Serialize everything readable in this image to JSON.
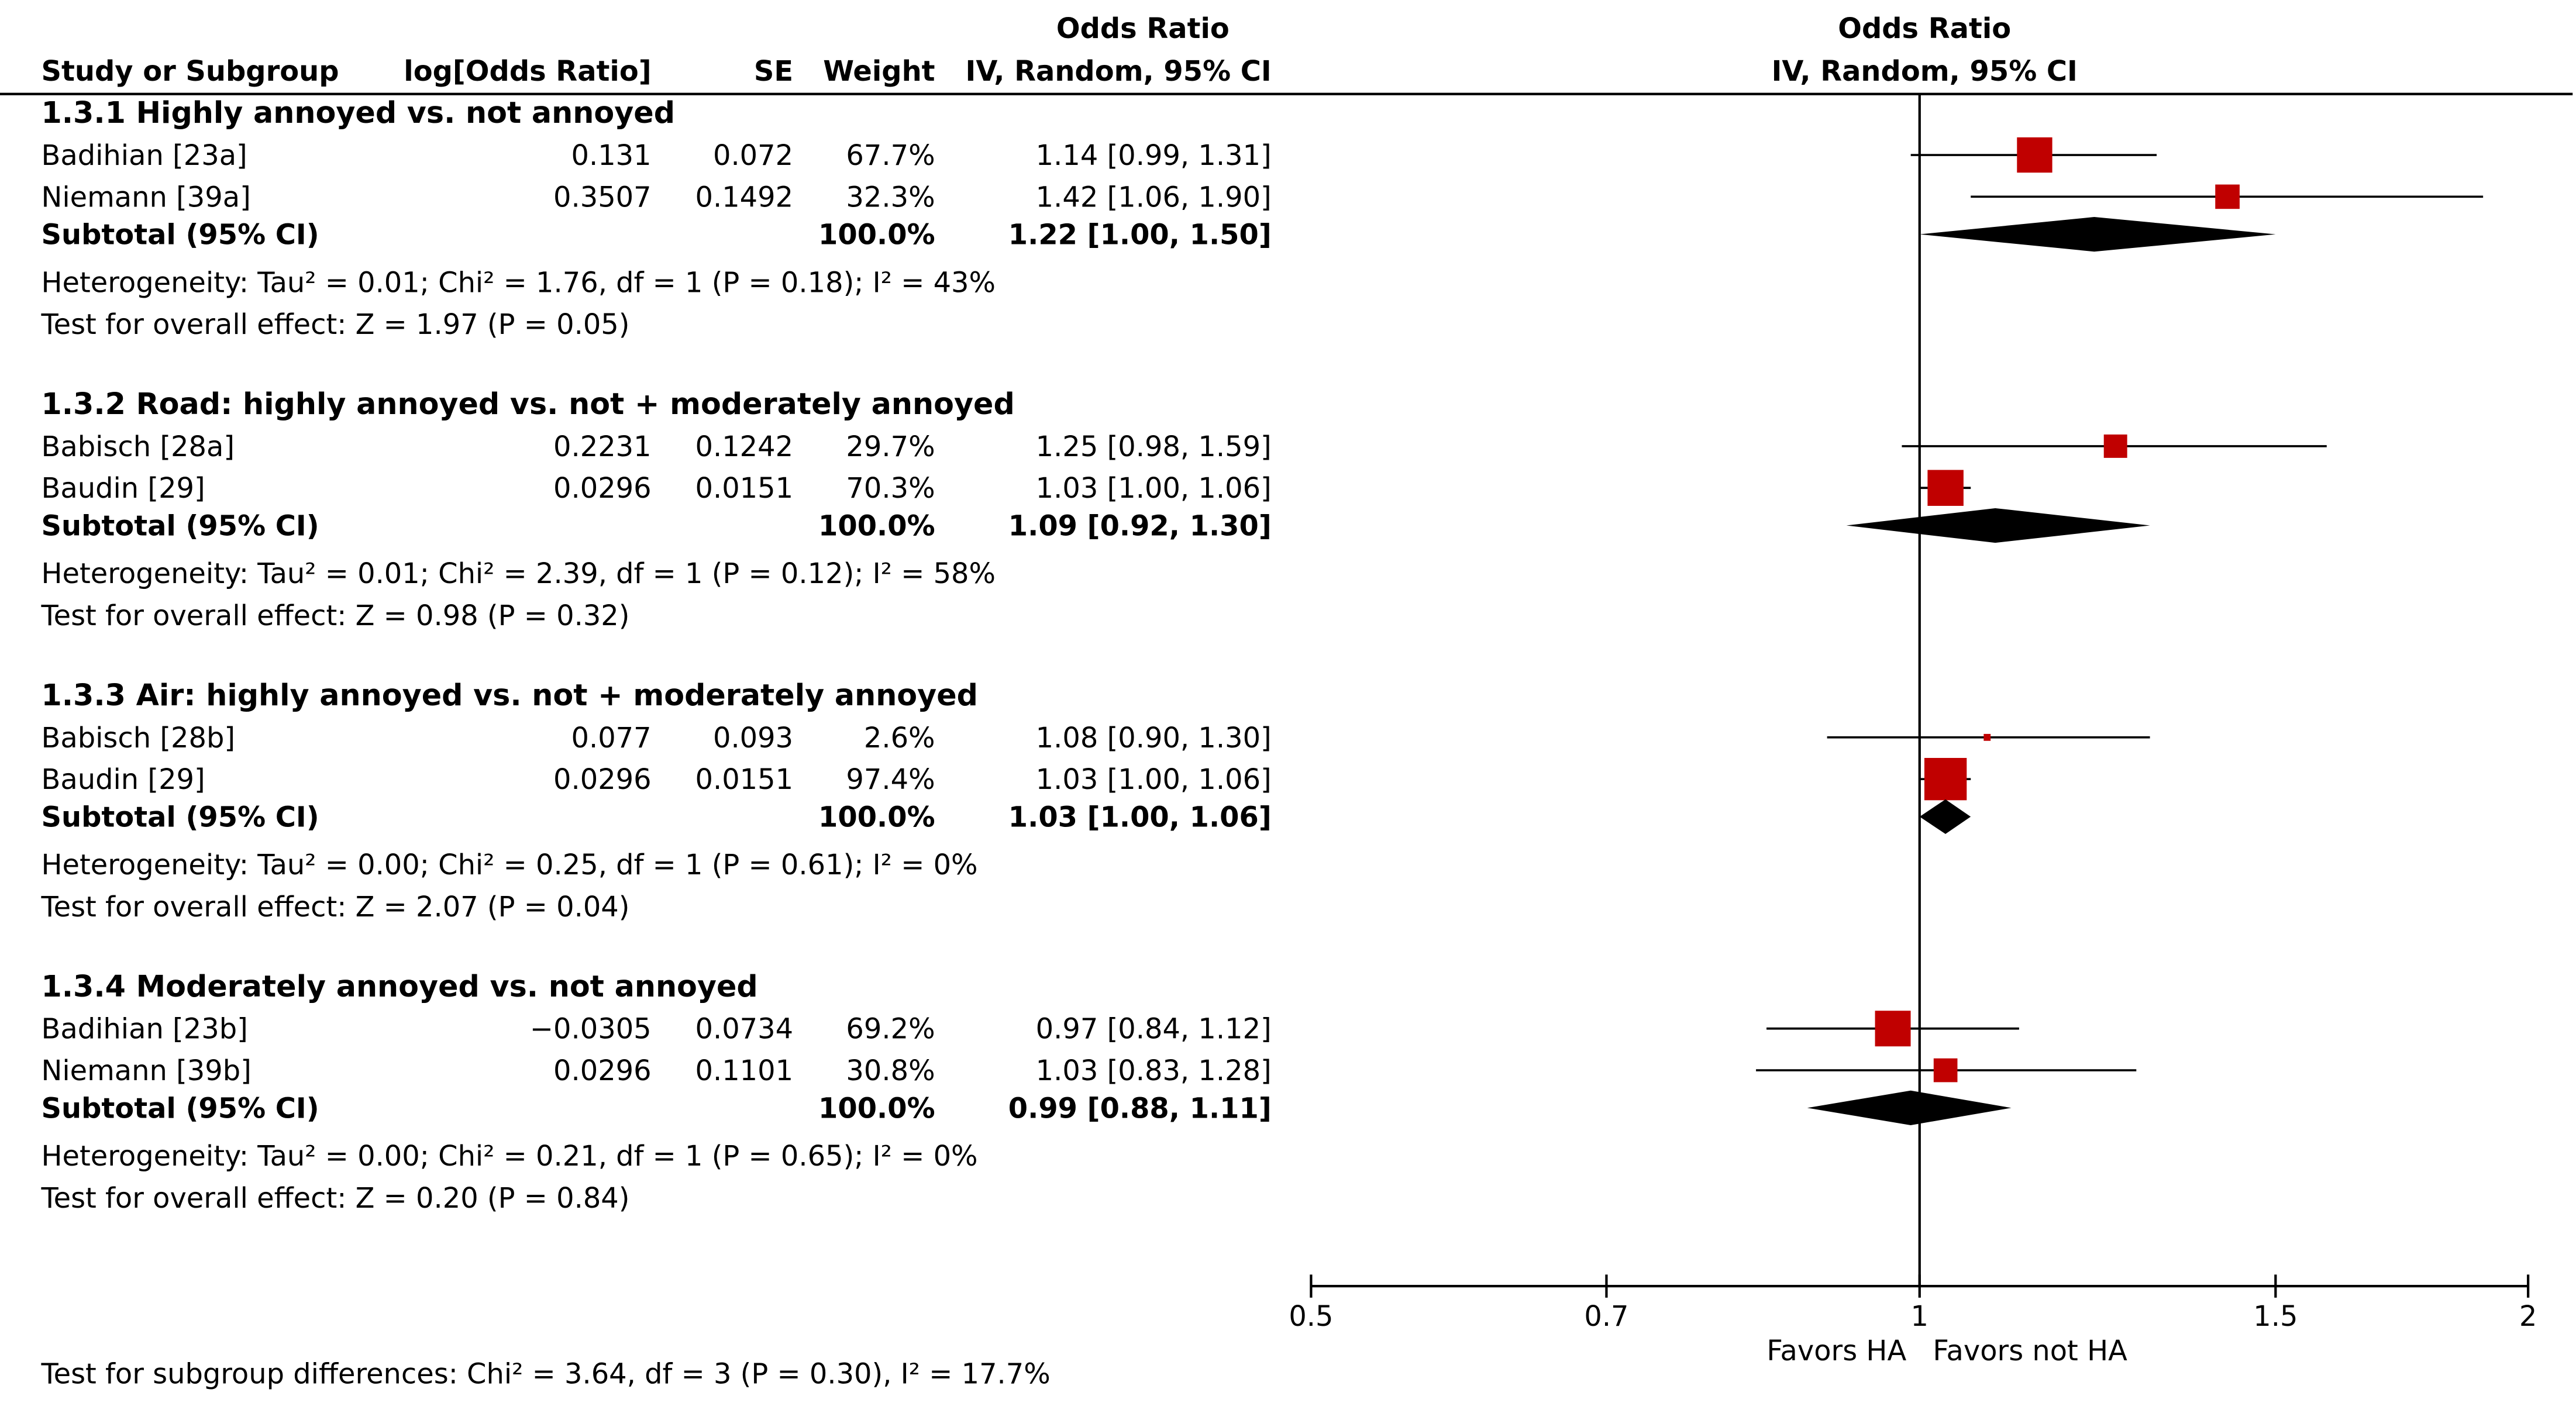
{
  "columns": {
    "study": "Study or Subgroup",
    "logor": "log[Odds Ratio]",
    "se": "SE",
    "weight": "Weight",
    "or_title": "Odds Ratio",
    "or_method": "IV, Random, 95% CI",
    "plot_title": "Odds Ratio",
    "plot_method": "IV, Random, 95% CI"
  },
  "overall_note": "Test for subgroup differences: Chi² = 3.64, df = 3 (P = 0.30), I² = 17.7%",
  "chart_data": {
    "type": "forest",
    "title": "Odds Ratio",
    "subtitle": "IV, Random, 95% CI",
    "xscale": "log",
    "xlim": [
      0.5,
      2
    ],
    "xticks": [
      0.5,
      0.7,
      1,
      1.5,
      2
    ],
    "xtick_labels": [
      "0.5",
      "0.7",
      "1",
      "1.5",
      "2"
    ],
    "null_value": 1,
    "favors_left": "Favors HA",
    "favors_right": "Favors not HA",
    "groups": [
      {
        "title": "1.3.1 Highly annoyed vs. not annoyed",
        "studies": [
          {
            "name": "Badihian [23a]",
            "logor": "0.131",
            "se": "0.072",
            "weight": "67.7%",
            "ci_text": "1.14 [0.99, 1.31]",
            "or": 1.14,
            "lo": 0.99,
            "hi": 1.31,
            "w": 67.7
          },
          {
            "name": "Niemann [39a]",
            "logor": "0.3507",
            "se": "0.1492",
            "weight": "32.3%",
            "ci_text": "1.42 [1.06, 1.90]",
            "or": 1.42,
            "lo": 1.06,
            "hi": 1.9,
            "w": 32.3
          }
        ],
        "subtotal": {
          "label": "Subtotal (95% CI)",
          "weight": "100.0%",
          "ci_text": "1.22 [1.00, 1.50]",
          "or": 1.22,
          "lo": 1.0,
          "hi": 1.5
        },
        "heterogeneity": "Heterogeneity: Tau² = 0.01; Chi² = 1.76, df = 1 (P = 0.18); I² = 43%",
        "effect": "Test for overall effect: Z = 1.97 (P = 0.05)"
      },
      {
        "title": "1.3.2 Road: highly annoyed vs. not + moderately annoyed",
        "studies": [
          {
            "name": "Babisch [28a]",
            "logor": "0.2231",
            "se": "0.1242",
            "weight": "29.7%",
            "ci_text": "1.25 [0.98, 1.59]",
            "or": 1.25,
            "lo": 0.98,
            "hi": 1.59,
            "w": 29.7
          },
          {
            "name": "Baudin [29]",
            "logor": "0.0296",
            "se": "0.0151",
            "weight": "70.3%",
            "ci_text": "1.03 [1.00, 1.06]",
            "or": 1.03,
            "lo": 1.0,
            "hi": 1.06,
            "w": 70.3
          }
        ],
        "subtotal": {
          "label": "Subtotal (95% CI)",
          "weight": "100.0%",
          "ci_text": "1.09 [0.92, 1.30]",
          "or": 1.09,
          "lo": 0.92,
          "hi": 1.3
        },
        "heterogeneity": "Heterogeneity: Tau² = 0.01; Chi² = 2.39, df = 1 (P = 0.12); I² = 58%",
        "effect": "Test for overall effect: Z = 0.98 (P = 0.32)"
      },
      {
        "title": "1.3.3 Air: highly annoyed vs. not + moderately annoyed",
        "studies": [
          {
            "name": "Babisch [28b]",
            "logor": "0.077",
            "se": "0.093",
            "weight": "2.6%",
            "ci_text": "1.08 [0.90, 1.30]",
            "or": 1.08,
            "lo": 0.9,
            "hi": 1.3,
            "w": 2.6
          },
          {
            "name": "Baudin [29]",
            "logor": "0.0296",
            "se": "0.0151",
            "weight": "97.4%",
            "ci_text": "1.03 [1.00, 1.06]",
            "or": 1.03,
            "lo": 1.0,
            "hi": 1.06,
            "w": 97.4
          }
        ],
        "subtotal": {
          "label": "Subtotal (95% CI)",
          "weight": "100.0%",
          "ci_text": "1.03 [1.00, 1.06]",
          "or": 1.03,
          "lo": 1.0,
          "hi": 1.06
        },
        "heterogeneity": "Heterogeneity: Tau² = 0.00; Chi² = 0.25, df = 1 (P = 0.61); I² = 0%",
        "effect": "Test for overall effect: Z = 2.07 (P = 0.04)"
      },
      {
        "title": "1.3.4 Moderately annoyed vs. not annoyed",
        "studies": [
          {
            "name": "Badihian [23b]",
            "logor": "−0.0305",
            "se": "0.0734",
            "weight": "69.2%",
            "ci_text": "0.97 [0.84, 1.12]",
            "or": 0.97,
            "lo": 0.84,
            "hi": 1.12,
            "w": 69.2
          },
          {
            "name": "Niemann [39b]",
            "logor": "0.0296",
            "se": "0.1101",
            "weight": "30.8%",
            "ci_text": "1.03 [0.83, 1.28]",
            "or": 1.03,
            "lo": 0.83,
            "hi": 1.28,
            "w": 30.8
          }
        ],
        "subtotal": {
          "label": "Subtotal (95% CI)",
          "weight": "100.0%",
          "ci_text": "0.99 [0.88, 1.11]",
          "or": 0.99,
          "lo": 0.88,
          "hi": 1.11
        },
        "heterogeneity": "Heterogeneity: Tau² = 0.00; Chi² = 0.21, df = 1 (P = 0.65); I² = 0%",
        "effect": "Test for overall effect: Z = 0.20 (P = 0.84)"
      }
    ]
  },
  "colors": {
    "study_marker": "#c00000",
    "diamond": "#000000",
    "line": "#000000"
  }
}
